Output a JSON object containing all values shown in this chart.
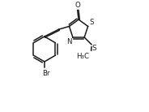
{
  "bg_color": "#ffffff",
  "line_color": "#1a1a1a",
  "line_width": 1.1,
  "font_size": 6.2,
  "xlim": [
    0,
    10
  ],
  "ylim": [
    0,
    8
  ]
}
